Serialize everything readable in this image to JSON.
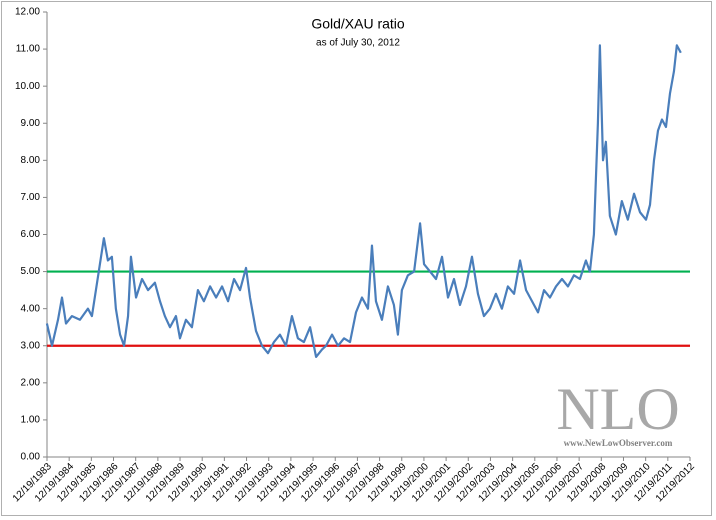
{
  "chart_data": {
    "type": "line",
    "title": "Gold/XAU ratio",
    "subtitle": "as of July 30, 2012",
    "color": "#4a7ebb",
    "x": [
      1983.96,
      1984.19,
      1984.46,
      1984.64,
      1984.82,
      1985.09,
      1985.45,
      1985.81,
      1985.99,
      1986.17,
      1986.35,
      1986.53,
      1986.71,
      1986.89,
      1987.07,
      1987.26,
      1987.44,
      1987.62,
      1987.75,
      1987.98,
      1988.25,
      1988.52,
      1988.83,
      1989.06,
      1989.28,
      1989.51,
      1989.78,
      1989.96,
      1990.23,
      1990.5,
      1990.77,
      1991.04,
      1991.32,
      1991.59,
      1991.86,
      1992.13,
      1992.4,
      1992.67,
      1992.94,
      1993.12,
      1993.39,
      1993.66,
      1993.93,
      1994.2,
      1994.47,
      1994.74,
      1995.01,
      1995.28,
      1995.55,
      1995.83,
      1996.1,
      1996.37,
      1996.55,
      1996.82,
      1997.09,
      1997.36,
      1997.63,
      1997.9,
      1998.17,
      1998.44,
      1998.62,
      1998.8,
      1999.07,
      1999.34,
      1999.61,
      1999.79,
      1999.97,
      2000.24,
      2000.52,
      2000.79,
      2000.97,
      2001.24,
      2001.51,
      2001.78,
      2002.05,
      2002.32,
      2002.59,
      2002.86,
      2003.13,
      2003.4,
      2003.67,
      2003.94,
      2004.21,
      2004.48,
      2004.75,
      2005.03,
      2005.3,
      2005.57,
      2005.84,
      2006.11,
      2006.38,
      2006.65,
      2006.92,
      2007.19,
      2007.46,
      2007.73,
      2008.0,
      2008.27,
      2008.45,
      2008.63,
      2008.81,
      2008.9,
      2009.04,
      2009.17,
      2009.35,
      2009.62,
      2009.89,
      2010.16,
      2010.44,
      2010.71,
      2010.98,
      2011.16,
      2011.34,
      2011.52,
      2011.7,
      2011.88,
      2012.06,
      2012.24,
      2012.37,
      2012.55
    ],
    "values": [
      3.6,
      3.0,
      3.7,
      4.3,
      3.6,
      3.8,
      3.7,
      4.0,
      3.8,
      4.5,
      5.2,
      5.9,
      5.3,
      5.4,
      4.0,
      3.3,
      3.0,
      3.8,
      5.4,
      4.3,
      4.8,
      4.5,
      4.7,
      4.2,
      3.8,
      3.5,
      3.8,
      3.2,
      3.7,
      3.5,
      4.5,
      4.2,
      4.6,
      4.3,
      4.6,
      4.2,
      4.8,
      4.5,
      5.1,
      4.3,
      3.4,
      3.0,
      2.8,
      3.1,
      3.3,
      3.0,
      3.8,
      3.2,
      3.1,
      3.5,
      2.7,
      2.9,
      3.0,
      3.3,
      3.0,
      3.2,
      3.1,
      3.9,
      4.3,
      4.0,
      5.7,
      4.2,
      3.7,
      4.6,
      4.1,
      3.3,
      4.5,
      4.9,
      5.0,
      6.3,
      5.2,
      5.0,
      4.8,
      5.4,
      4.3,
      4.8,
      4.1,
      4.6,
      5.4,
      4.4,
      3.8,
      4.0,
      4.4,
      4.0,
      4.6,
      4.4,
      5.3,
      4.5,
      4.2,
      3.9,
      4.5,
      4.3,
      4.6,
      4.8,
      4.6,
      4.9,
      4.8,
      5.3,
      5.0,
      6.0,
      9.0,
      11.1,
      8.0,
      8.5,
      6.5,
      6.0,
      6.9,
      6.4,
      7.1,
      6.6,
      6.4,
      6.8,
      8.0,
      8.8,
      9.1,
      8.9,
      9.8,
      10.4,
      11.1,
      10.9
    ],
    "xlim": [
      1983.964,
      2012.964
    ],
    "xticks": [
      {
        "value": 1983.964,
        "label": "12/19/1983"
      },
      {
        "value": 1984.964,
        "label": "12/19/1984"
      },
      {
        "value": 1985.964,
        "label": "12/19/1985"
      },
      {
        "value": 1986.964,
        "label": "12/19/1986"
      },
      {
        "value": 1987.964,
        "label": "12/19/1987"
      },
      {
        "value": 1988.964,
        "label": "12/19/1988"
      },
      {
        "value": 1989.964,
        "label": "12/19/1989"
      },
      {
        "value": 1990.964,
        "label": "12/19/1990"
      },
      {
        "value": 1991.964,
        "label": "12/19/1991"
      },
      {
        "value": 1992.964,
        "label": "12/19/1992"
      },
      {
        "value": 1993.964,
        "label": "12/19/1993"
      },
      {
        "value": 1994.964,
        "label": "12/19/1994"
      },
      {
        "value": 1995.964,
        "label": "12/19/1995"
      },
      {
        "value": 1996.964,
        "label": "12/19/1996"
      },
      {
        "value": 1997.964,
        "label": "12/19/1997"
      },
      {
        "value": 1998.964,
        "label": "12/19/1998"
      },
      {
        "value": 1999.964,
        "label": "12/19/1999"
      },
      {
        "value": 2000.964,
        "label": "12/19/2000"
      },
      {
        "value": 2001.964,
        "label": "12/19/2001"
      },
      {
        "value": 2002.964,
        "label": "12/19/2002"
      },
      {
        "value": 2003.964,
        "label": "12/19/2003"
      },
      {
        "value": 2004.964,
        "label": "12/19/2004"
      },
      {
        "value": 2005.964,
        "label": "12/19/2005"
      },
      {
        "value": 2006.964,
        "label": "12/19/2006"
      },
      {
        "value": 2007.964,
        "label": "12/19/2007"
      },
      {
        "value": 2008.964,
        "label": "12/19/2008"
      },
      {
        "value": 2009.964,
        "label": "12/19/2009"
      },
      {
        "value": 2010.964,
        "label": "12/19/2010"
      },
      {
        "value": 2011.964,
        "label": "12/19/2011"
      },
      {
        "value": 2012.964,
        "label": "12/19/2012"
      }
    ],
    "ylim": [
      0,
      12
    ],
    "yticks": [
      {
        "value": 0,
        "label": "0.00"
      },
      {
        "value": 1,
        "label": "1.00"
      },
      {
        "value": 2,
        "label": "2.00"
      },
      {
        "value": 3,
        "label": "3.00"
      },
      {
        "value": 4,
        "label": "4.00"
      },
      {
        "value": 5,
        "label": "5.00"
      },
      {
        "value": 6,
        "label": "6.00"
      },
      {
        "value": 7,
        "label": "7.00"
      },
      {
        "value": 8,
        "label": "8.00"
      },
      {
        "value": 9,
        "label": "9.00"
      },
      {
        "value": 10,
        "label": "10.00"
      },
      {
        "value": 11,
        "label": "11.00"
      },
      {
        "value": 12,
        "label": "12.00"
      }
    ],
    "reference_lines": [
      {
        "value": 5,
        "color": "#00b050"
      },
      {
        "value": 3,
        "color": "#e01010"
      }
    ],
    "watermark": {
      "title": "NLO",
      "url": "www.NewLowObserver.com"
    }
  }
}
